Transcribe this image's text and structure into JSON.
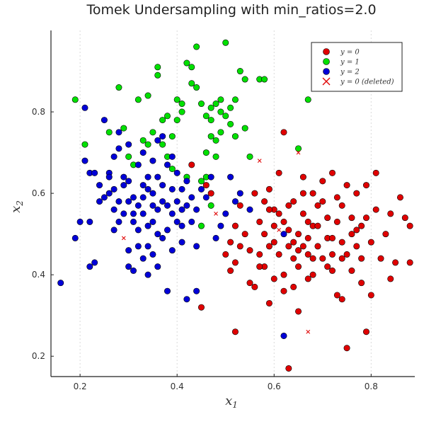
{
  "chart_data": {
    "type": "scatter",
    "title": "Tomek Undersampling with min_ratios=2.0",
    "xlabel": "x1",
    "ylabel": "x2",
    "xlim": [
      0.14,
      0.89
    ],
    "ylim": [
      0.15,
      1.0
    ],
    "xticks": [
      "0.2",
      "0.4",
      "0.6",
      "0.8"
    ],
    "yticks": [
      "0.2",
      "0.4",
      "0.6",
      "0.8"
    ],
    "grid": "vertical-dotted",
    "legend_position": "top-right",
    "colors": {
      "y0": "#e00000",
      "y1": "#00e000",
      "y2": "#0000d8",
      "deleted": "#e00000"
    },
    "series": [
      {
        "name": "y = 0",
        "marker": "circle",
        "color": "#e00000",
        "points": [
          [
            0.43,
            0.67
          ],
          [
            0.46,
            0.62
          ],
          [
            0.47,
            0.6
          ],
          [
            0.45,
            0.32
          ],
          [
            0.52,
            0.26
          ],
          [
            0.53,
            0.57
          ],
          [
            0.52,
            0.52
          ],
          [
            0.51,
            0.48
          ],
          [
            0.51,
            0.41
          ],
          [
            0.5,
            0.45
          ],
          [
            0.52,
            0.43
          ],
          [
            0.53,
            0.47
          ],
          [
            0.54,
            0.5
          ],
          [
            0.55,
            0.38
          ],
          [
            0.55,
            0.46
          ],
          [
            0.56,
            0.37
          ],
          [
            0.56,
            0.6
          ],
          [
            0.57,
            0.53
          ],
          [
            0.57,
            0.45
          ],
          [
            0.58,
            0.42
          ],
          [
            0.58,
            0.5
          ],
          [
            0.59,
            0.33
          ],
          [
            0.59,
            0.47
          ],
          [
            0.59,
            0.61
          ],
          [
            0.6,
            0.56
          ],
          [
            0.6,
            0.39
          ],
          [
            0.61,
            0.45
          ],
          [
            0.61,
            0.65
          ],
          [
            0.62,
            0.75
          ],
          [
            0.62,
            0.53
          ],
          [
            0.62,
            0.36
          ],
          [
            0.63,
            0.47
          ],
          [
            0.63,
            0.17
          ],
          [
            0.63,
            0.51
          ],
          [
            0.64,
            0.37
          ],
          [
            0.64,
            0.58
          ],
          [
            0.64,
            0.44
          ],
          [
            0.65,
            0.31
          ],
          [
            0.65,
            0.5
          ],
          [
            0.65,
            0.42
          ],
          [
            0.66,
            0.55
          ],
          [
            0.66,
            0.47
          ],
          [
            0.66,
            0.64
          ],
          [
            0.67,
            0.39
          ],
          [
            0.67,
            0.49
          ],
          [
            0.67,
            0.45
          ],
          [
            0.68,
            0.52
          ],
          [
            0.68,
            0.4
          ],
          [
            0.69,
            0.57
          ],
          [
            0.69,
            0.47
          ],
          [
            0.7,
            0.44
          ],
          [
            0.7,
            0.63
          ],
          [
            0.71,
            0.54
          ],
          [
            0.71,
            0.49
          ],
          [
            0.72,
            0.45
          ],
          [
            0.72,
            0.41
          ],
          [
            0.72,
            0.65
          ],
          [
            0.73,
            0.53
          ],
          [
            0.73,
            0.59
          ],
          [
            0.73,
            0.35
          ],
          [
            0.74,
            0.48
          ],
          [
            0.74,
            0.34
          ],
          [
            0.74,
            0.57
          ],
          [
            0.75,
            0.45
          ],
          [
            0.75,
            0.62
          ],
          [
            0.75,
            0.22
          ],
          [
            0.76,
            0.54
          ],
          [
            0.76,
            0.5
          ],
          [
            0.76,
            0.41
          ],
          [
            0.77,
            0.47
          ],
          [
            0.77,
            0.6
          ],
          [
            0.78,
            0.52
          ],
          [
            0.78,
            0.44
          ],
          [
            0.78,
            0.38
          ],
          [
            0.79,
            0.26
          ],
          [
            0.79,
            0.62
          ],
          [
            0.79,
            0.54
          ],
          [
            0.8,
            0.48
          ],
          [
            0.8,
            0.35
          ],
          [
            0.81,
            0.56
          ],
          [
            0.81,
            0.65
          ],
          [
            0.82,
            0.44
          ],
          [
            0.83,
            0.5
          ],
          [
            0.84,
            0.39
          ],
          [
            0.84,
            0.55
          ],
          [
            0.85,
            0.43
          ],
          [
            0.86,
            0.59
          ],
          [
            0.87,
            0.54
          ],
          [
            0.88,
            0.52
          ],
          [
            0.88,
            0.43
          ],
          [
            0.57,
            0.42
          ],
          [
            0.58,
            0.58
          ],
          [
            0.6,
            0.48
          ],
          [
            0.61,
            0.55
          ],
          [
            0.64,
            0.48
          ],
          [
            0.65,
            0.46
          ],
          [
            0.68,
            0.44
          ],
          [
            0.7,
            0.58
          ],
          [
            0.71,
            0.42
          ],
          [
            0.63,
            0.57
          ],
          [
            0.68,
            0.6
          ],
          [
            0.72,
            0.49
          ],
          [
            0.74,
            0.44
          ],
          [
            0.77,
            0.51
          ],
          [
            0.67,
            0.53
          ],
          [
            0.66,
            0.6
          ],
          [
            0.69,
            0.52
          ],
          [
            0.62,
            0.4
          ],
          [
            0.6,
            0.52
          ],
          [
            0.59,
            0.56
          ]
        ]
      },
      {
        "name": "y = 1",
        "marker": "circle",
        "color": "#00e000",
        "points": [
          [
            0.19,
            0.83
          ],
          [
            0.21,
            0.72
          ],
          [
            0.26,
            0.75
          ],
          [
            0.28,
            0.86
          ],
          [
            0.29,
            0.76
          ],
          [
            0.3,
            0.69
          ],
          [
            0.31,
            0.67
          ],
          [
            0.32,
            0.83
          ],
          [
            0.33,
            0.73
          ],
          [
            0.34,
            0.84
          ],
          [
            0.34,
            0.72
          ],
          [
            0.35,
            0.75
          ],
          [
            0.36,
            0.89
          ],
          [
            0.36,
            0.91
          ],
          [
            0.37,
            0.78
          ],
          [
            0.37,
            0.72
          ],
          [
            0.38,
            0.69
          ],
          [
            0.38,
            0.79
          ],
          [
            0.39,
            0.66
          ],
          [
            0.39,
            0.74
          ],
          [
            0.4,
            0.83
          ],
          [
            0.4,
            0.78
          ],
          [
            0.41,
            0.8
          ],
          [
            0.41,
            0.82
          ],
          [
            0.42,
            0.92
          ],
          [
            0.43,
            0.91
          ],
          [
            0.43,
            0.87
          ],
          [
            0.44,
            0.96
          ],
          [
            0.44,
            0.86
          ],
          [
            0.45,
            0.82
          ],
          [
            0.45,
            0.63
          ],
          [
            0.46,
            0.79
          ],
          [
            0.46,
            0.7
          ],
          [
            0.47,
            0.74
          ],
          [
            0.47,
            0.81
          ],
          [
            0.47,
            0.57
          ],
          [
            0.48,
            0.82
          ],
          [
            0.48,
            0.69
          ],
          [
            0.49,
            0.8
          ],
          [
            0.49,
            0.83
          ],
          [
            0.5,
            0.97
          ],
          [
            0.5,
            0.79
          ],
          [
            0.51,
            0.77
          ],
          [
            0.52,
            0.74
          ],
          [
            0.53,
            0.9
          ],
          [
            0.54,
            0.88
          ],
          [
            0.54,
            0.76
          ],
          [
            0.55,
            0.69
          ],
          [
            0.57,
            0.88
          ],
          [
            0.58,
            0.88
          ],
          [
            0.42,
            0.64
          ],
          [
            0.45,
            0.52
          ],
          [
            0.46,
            0.64
          ],
          [
            0.48,
            0.73
          ],
          [
            0.65,
            0.71
          ],
          [
            0.67,
            0.83
          ],
          [
            0.52,
            0.83
          ],
          [
            0.51,
            0.81
          ],
          [
            0.47,
            0.78
          ],
          [
            0.49,
            0.75
          ]
        ]
      },
      {
        "name": "y = 2",
        "marker": "circle",
        "color": "#0000d8",
        "points": [
          [
            0.16,
            0.38
          ],
          [
            0.19,
            0.49
          ],
          [
            0.2,
            0.53
          ],
          [
            0.21,
            0.81
          ],
          [
            0.21,
            0.68
          ],
          [
            0.22,
            0.53
          ],
          [
            0.22,
            0.65
          ],
          [
            0.23,
            0.43
          ],
          [
            0.23,
            0.65
          ],
          [
            0.24,
            0.62
          ],
          [
            0.25,
            0.78
          ],
          [
            0.25,
            0.59
          ],
          [
            0.26,
            0.65
          ],
          [
            0.26,
            0.64
          ],
          [
            0.27,
            0.61
          ],
          [
            0.27,
            0.56
          ],
          [
            0.27,
            0.51
          ],
          [
            0.28,
            0.58
          ],
          [
            0.28,
            0.53
          ],
          [
            0.28,
            0.75
          ],
          [
            0.29,
            0.62
          ],
          [
            0.29,
            0.55
          ],
          [
            0.3,
            0.42
          ],
          [
            0.3,
            0.46
          ],
          [
            0.3,
            0.63
          ],
          [
            0.3,
            0.72
          ],
          [
            0.31,
            0.53
          ],
          [
            0.31,
            0.41
          ],
          [
            0.31,
            0.59
          ],
          [
            0.32,
            0.67
          ],
          [
            0.32,
            0.47
          ],
          [
            0.32,
            0.57
          ],
          [
            0.32,
            0.51
          ],
          [
            0.33,
            0.62
          ],
          [
            0.33,
            0.44
          ],
          [
            0.33,
            0.55
          ],
          [
            0.33,
            0.59
          ],
          [
            0.34,
            0.52
          ],
          [
            0.34,
            0.64
          ],
          [
            0.34,
            0.4
          ],
          [
            0.34,
            0.47
          ],
          [
            0.35,
            0.57
          ],
          [
            0.35,
            0.68
          ],
          [
            0.35,
            0.6
          ],
          [
            0.35,
            0.53
          ],
          [
            0.36,
            0.73
          ],
          [
            0.36,
            0.64
          ],
          [
            0.36,
            0.42
          ],
          [
            0.36,
            0.56
          ],
          [
            0.37,
            0.74
          ],
          [
            0.37,
            0.62
          ],
          [
            0.37,
            0.49
          ],
          [
            0.38,
            0.51
          ],
          [
            0.38,
            0.57
          ],
          [
            0.38,
            0.67
          ],
          [
            0.38,
            0.36
          ],
          [
            0.39,
            0.61
          ],
          [
            0.39,
            0.55
          ],
          [
            0.39,
            0.46
          ],
          [
            0.4,
            0.58
          ],
          [
            0.4,
            0.65
          ],
          [
            0.4,
            0.53
          ],
          [
            0.41,
            0.48
          ],
          [
            0.41,
            0.61
          ],
          [
            0.41,
            0.56
          ],
          [
            0.42,
            0.63
          ],
          [
            0.42,
            0.34
          ],
          [
            0.42,
            0.57
          ],
          [
            0.43,
            0.53
          ],
          [
            0.43,
            0.59
          ],
          [
            0.44,
            0.47
          ],
          [
            0.44,
            0.56
          ],
          [
            0.44,
            0.36
          ],
          [
            0.45,
            0.61
          ],
          [
            0.46,
            0.59
          ],
          [
            0.47,
            0.64
          ],
          [
            0.48,
            0.49
          ],
          [
            0.49,
            0.52
          ],
          [
            0.5,
            0.55
          ],
          [
            0.51,
            0.64
          ],
          [
            0.52,
            0.58
          ],
          [
            0.53,
            0.6
          ],
          [
            0.55,
            0.56
          ],
          [
            0.62,
            0.25
          ],
          [
            0.62,
            0.5
          ],
          [
            0.22,
            0.42
          ],
          [
            0.26,
            0.6
          ],
          [
            0.28,
            0.71
          ],
          [
            0.24,
            0.58
          ],
          [
            0.36,
            0.5
          ],
          [
            0.39,
            0.69
          ],
          [
            0.31,
            0.55
          ],
          [
            0.33,
            0.7
          ],
          [
            0.3,
            0.58
          ],
          [
            0.27,
            0.69
          ],
          [
            0.35,
            0.45
          ],
          [
            0.37,
            0.58
          ],
          [
            0.41,
            0.52
          ],
          [
            0.29,
            0.64
          ],
          [
            0.34,
            0.61
          ]
        ]
      },
      {
        "name": "y = 0 (deleted)",
        "marker": "x",
        "color": "#e00000",
        "points": [
          [
            0.29,
            0.49
          ],
          [
            0.48,
            0.55
          ],
          [
            0.57,
            0.68
          ],
          [
            0.61,
            0.51
          ],
          [
            0.65,
            0.7
          ],
          [
            0.67,
            0.26
          ]
        ]
      }
    ]
  }
}
